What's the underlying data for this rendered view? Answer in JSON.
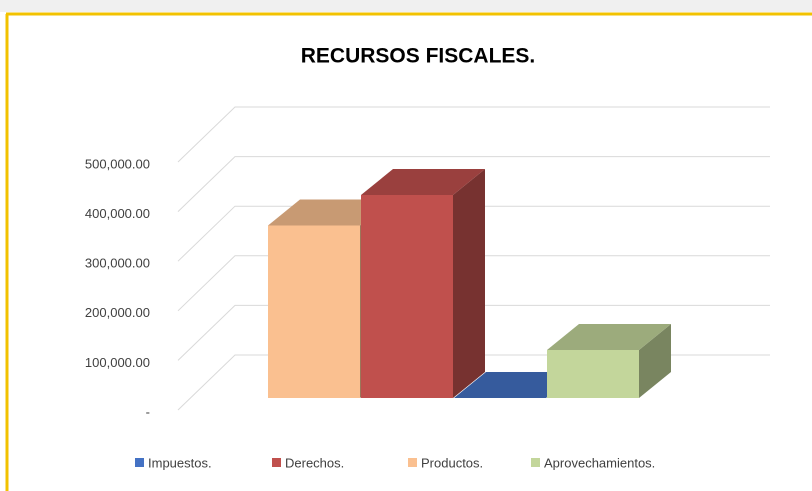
{
  "chart_data": {
    "type": "bar3d",
    "title": "RECURSOS FISCALES.",
    "series": [
      {
        "name": "Impuestos.",
        "color": "#4472c4",
        "values": [
          0
        ]
      },
      {
        "name": "Derechos.",
        "color": "#c0504d",
        "values": [
          406000
        ]
      },
      {
        "name": "Productos.",
        "color": "#fac090",
        "values": [
          345000
        ]
      },
      {
        "name": "Aprovechamientos.",
        "color": "#c3d69b",
        "values": [
          96000
        ]
      }
    ],
    "ylim": [
      0,
      500000
    ],
    "yticks": [
      {
        "value": 0,
        "label": "-"
      },
      {
        "value": 100000,
        "label": "100,000.00"
      },
      {
        "value": 200000,
        "label": "200,000.00"
      },
      {
        "value": 300000,
        "label": "300,000.00"
      },
      {
        "value": 400000,
        "label": "400,000.00"
      },
      {
        "value": 500000,
        "label": "500,000.00"
      }
    ],
    "grid": true,
    "legend": "bottom"
  }
}
